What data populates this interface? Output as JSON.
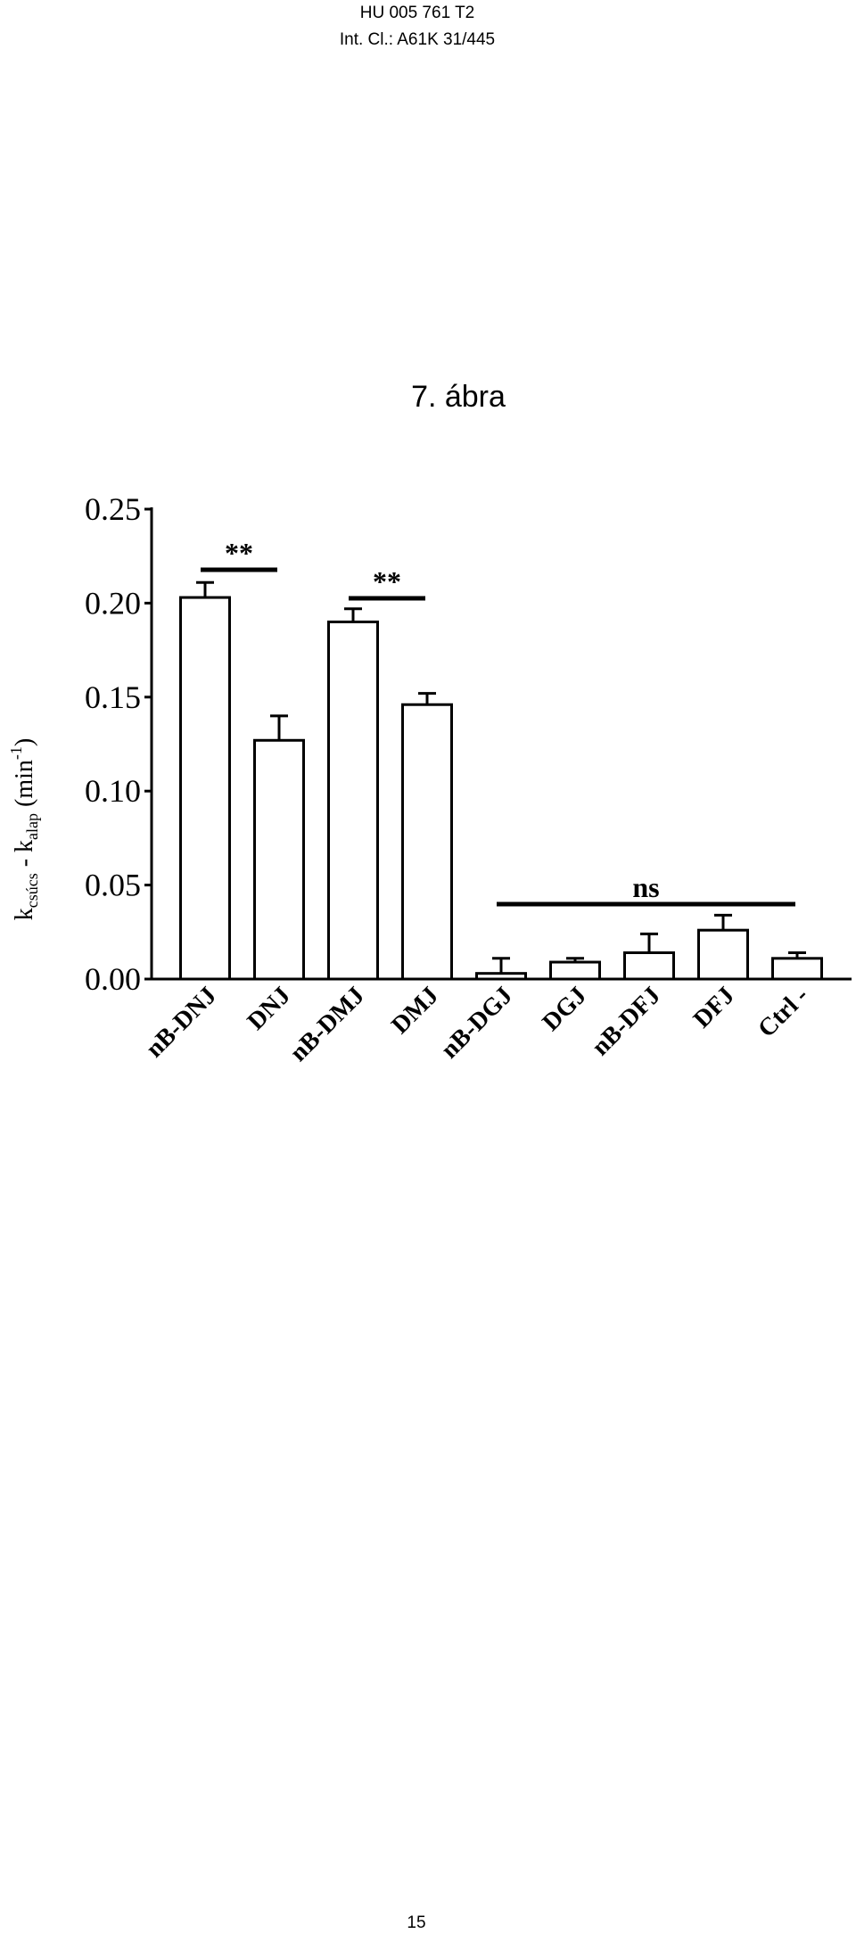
{
  "header": {
    "line1": "HU 005 761 T2",
    "line2": "Int. Cl.: A61K 31/445"
  },
  "figure_label": "7. ábra",
  "page_number": "15",
  "chart_data": {
    "type": "bar",
    "y_label": [
      "k",
      "csúcs",
      " - k",
      "alap",
      " (min",
      "-1",
      ")"
    ],
    "categories": [
      "nB-DNJ",
      "DNJ",
      "nB-DMJ",
      "DMJ",
      "nB-DGJ",
      "DGJ",
      "nB-DFJ",
      "DFJ",
      "Ctrl -"
    ],
    "series": [
      {
        "color": "#ffffff",
        "values": [
          0.203,
          0.127,
          0.19,
          0.146,
          0.003,
          0.009,
          0.014,
          0.026,
          0.011
        ],
        "errors": [
          0.008,
          0.013,
          0.007,
          0.006,
          0.008,
          0.002,
          0.01,
          0.008,
          0.003
        ]
      }
    ],
    "ylim": [
      0,
      0.25
    ],
    "yticks": [
      {
        "value": 0,
        "label": "0.00"
      },
      {
        "value": 0.05,
        "label": "0.05"
      },
      {
        "value": 0.1,
        "label": "0.10"
      },
      {
        "value": 0.15,
        "label": "0.15"
      },
      {
        "value": 0.2,
        "label": "0.20"
      },
      {
        "value": 0.25,
        "label": "0.25"
      }
    ],
    "annotations": [
      "**",
      "**",
      "ns"
    ],
    "grid": false
  }
}
